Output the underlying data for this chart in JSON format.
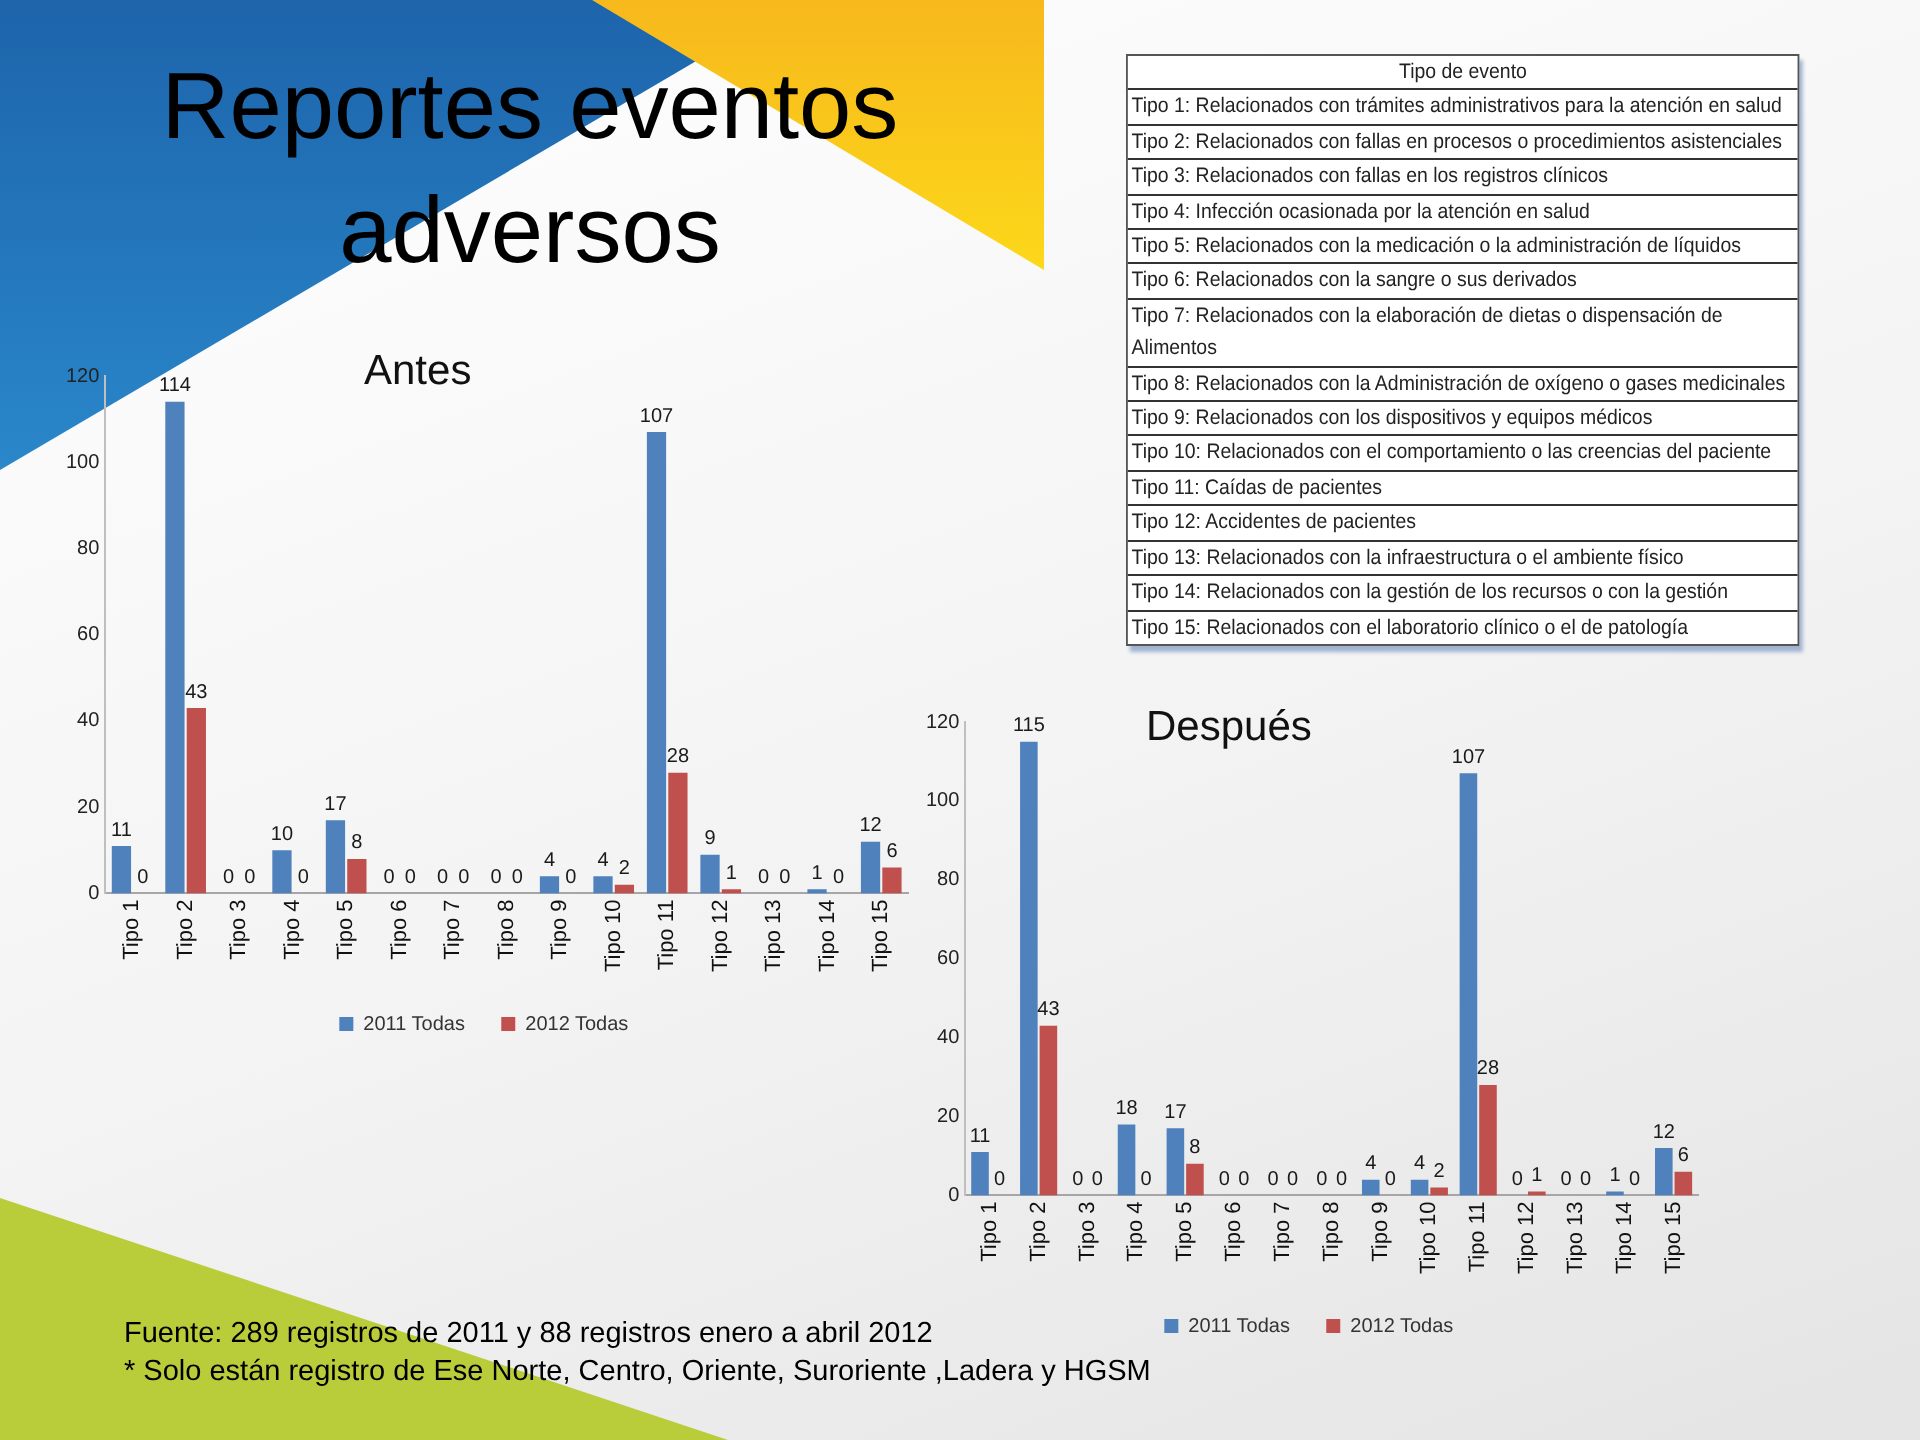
{
  "chart_data": [
    {
      "type": "other",
      "title": "Reportes eventos adversos",
      "annotations": [
        "Fuente: 289 registros de 2011 y 88 registros enero a abril 2012",
        "* Solo están registro de Ese Norte, Centro, Oriente, Suroriente ,Ladera y HGSM"
      ]
    },
    {
      "type": "other",
      "title": "Tipo de evento",
      "annotations": [
        "Tipo 1: Relacionados con trámites administrativos para la atención en salud",
        "Tipo 2: Relacionados con fallas en procesos o procedimientos asistenciales",
        "Tipo 3: Relacionados con fallas en los registros clínicos",
        "Tipo 4: Infección ocasionada por la atención en salud",
        "Tipo 5: Relacionados con la medicación o la administración de líquidos",
        "Tipo 6: Relacionados con la sangre o sus derivados",
        "Tipo 7: Relacionados con la elaboración de dietas o dispensación de Alimentos",
        "Tipo 8: Relacionados con la Administración de oxígeno o gases medicinales",
        "Tipo 9: Relacionados con los dispositivos y equipos médicos",
        "Tipo 10: Relacionados con el comportamiento o las creencias del paciente",
        "Tipo 11: Caídas de pacientes",
        "Tipo 12: Accidentes de pacientes",
        "Tipo 13: Relacionados con la infraestructura o el ambiente físico",
        "Tipo 14: Relacionados con la gestión de los recursos o con la gestión",
        "Tipo 15: Relacionados con el laboratorio clínico o el de patología"
      ]
    },
    {
      "type": "bar",
      "title": "Antes",
      "categories": [
        "Tipo 1",
        "Tipo 2",
        "Tipo 3",
        "Tipo 4",
        "Tipo 5",
        "Tipo 6",
        "Tipo 7",
        "Tipo 8",
        "Tipo 9",
        "Tipo 10",
        "Tipo 11",
        "Tipo 12",
        "Tipo 13",
        "Tipo 14",
        "Tipo 15"
      ],
      "series": [
        {
          "name": "2011 Todas",
          "color": "#4f81bd",
          "values": [
            11,
            114,
            0,
            10,
            17,
            0,
            0,
            0,
            4,
            4,
            107,
            9,
            0,
            1,
            12
          ]
        },
        {
          "name": "2012 Todas",
          "color": "#c0504d",
          "values": [
            0,
            43,
            0,
            0,
            8,
            0,
            0,
            0,
            0,
            2,
            28,
            1,
            0,
            0,
            6
          ]
        }
      ],
      "ylim": [
        0,
        120
      ],
      "yticks": [
        0,
        20,
        40,
        60,
        80,
        100,
        120
      ],
      "legend": "bottom",
      "data_labels": true
    },
    {
      "type": "bar",
      "title": "Después",
      "categories": [
        "Tipo 1",
        "Tipo 2",
        "Tipo 3",
        "Tipo 4",
        "Tipo 5",
        "Tipo 6",
        "Tipo 7",
        "Tipo 8",
        "Tipo 9",
        "Tipo 10",
        "Tipo 11",
        "Tipo 12",
        "Tipo 13",
        "Tipo 14",
        "Tipo 15"
      ],
      "series": [
        {
          "name": "2011 Todas",
          "color": "#4f81bd",
          "values": [
            11,
            115,
            0,
            18,
            17,
            0,
            0,
            0,
            4,
            4,
            107,
            0,
            0,
            1,
            12
          ]
        },
        {
          "name": "2012 Todas",
          "color": "#c0504d",
          "values": [
            0,
            43,
            0,
            0,
            8,
            0,
            0,
            0,
            0,
            2,
            28,
            1,
            0,
            0,
            6
          ]
        }
      ],
      "ylim": [
        0,
        120
      ],
      "yticks": [
        0,
        20,
        40,
        60,
        80,
        100,
        120
      ],
      "legend": "bottom",
      "data_labels": true
    }
  ]
}
